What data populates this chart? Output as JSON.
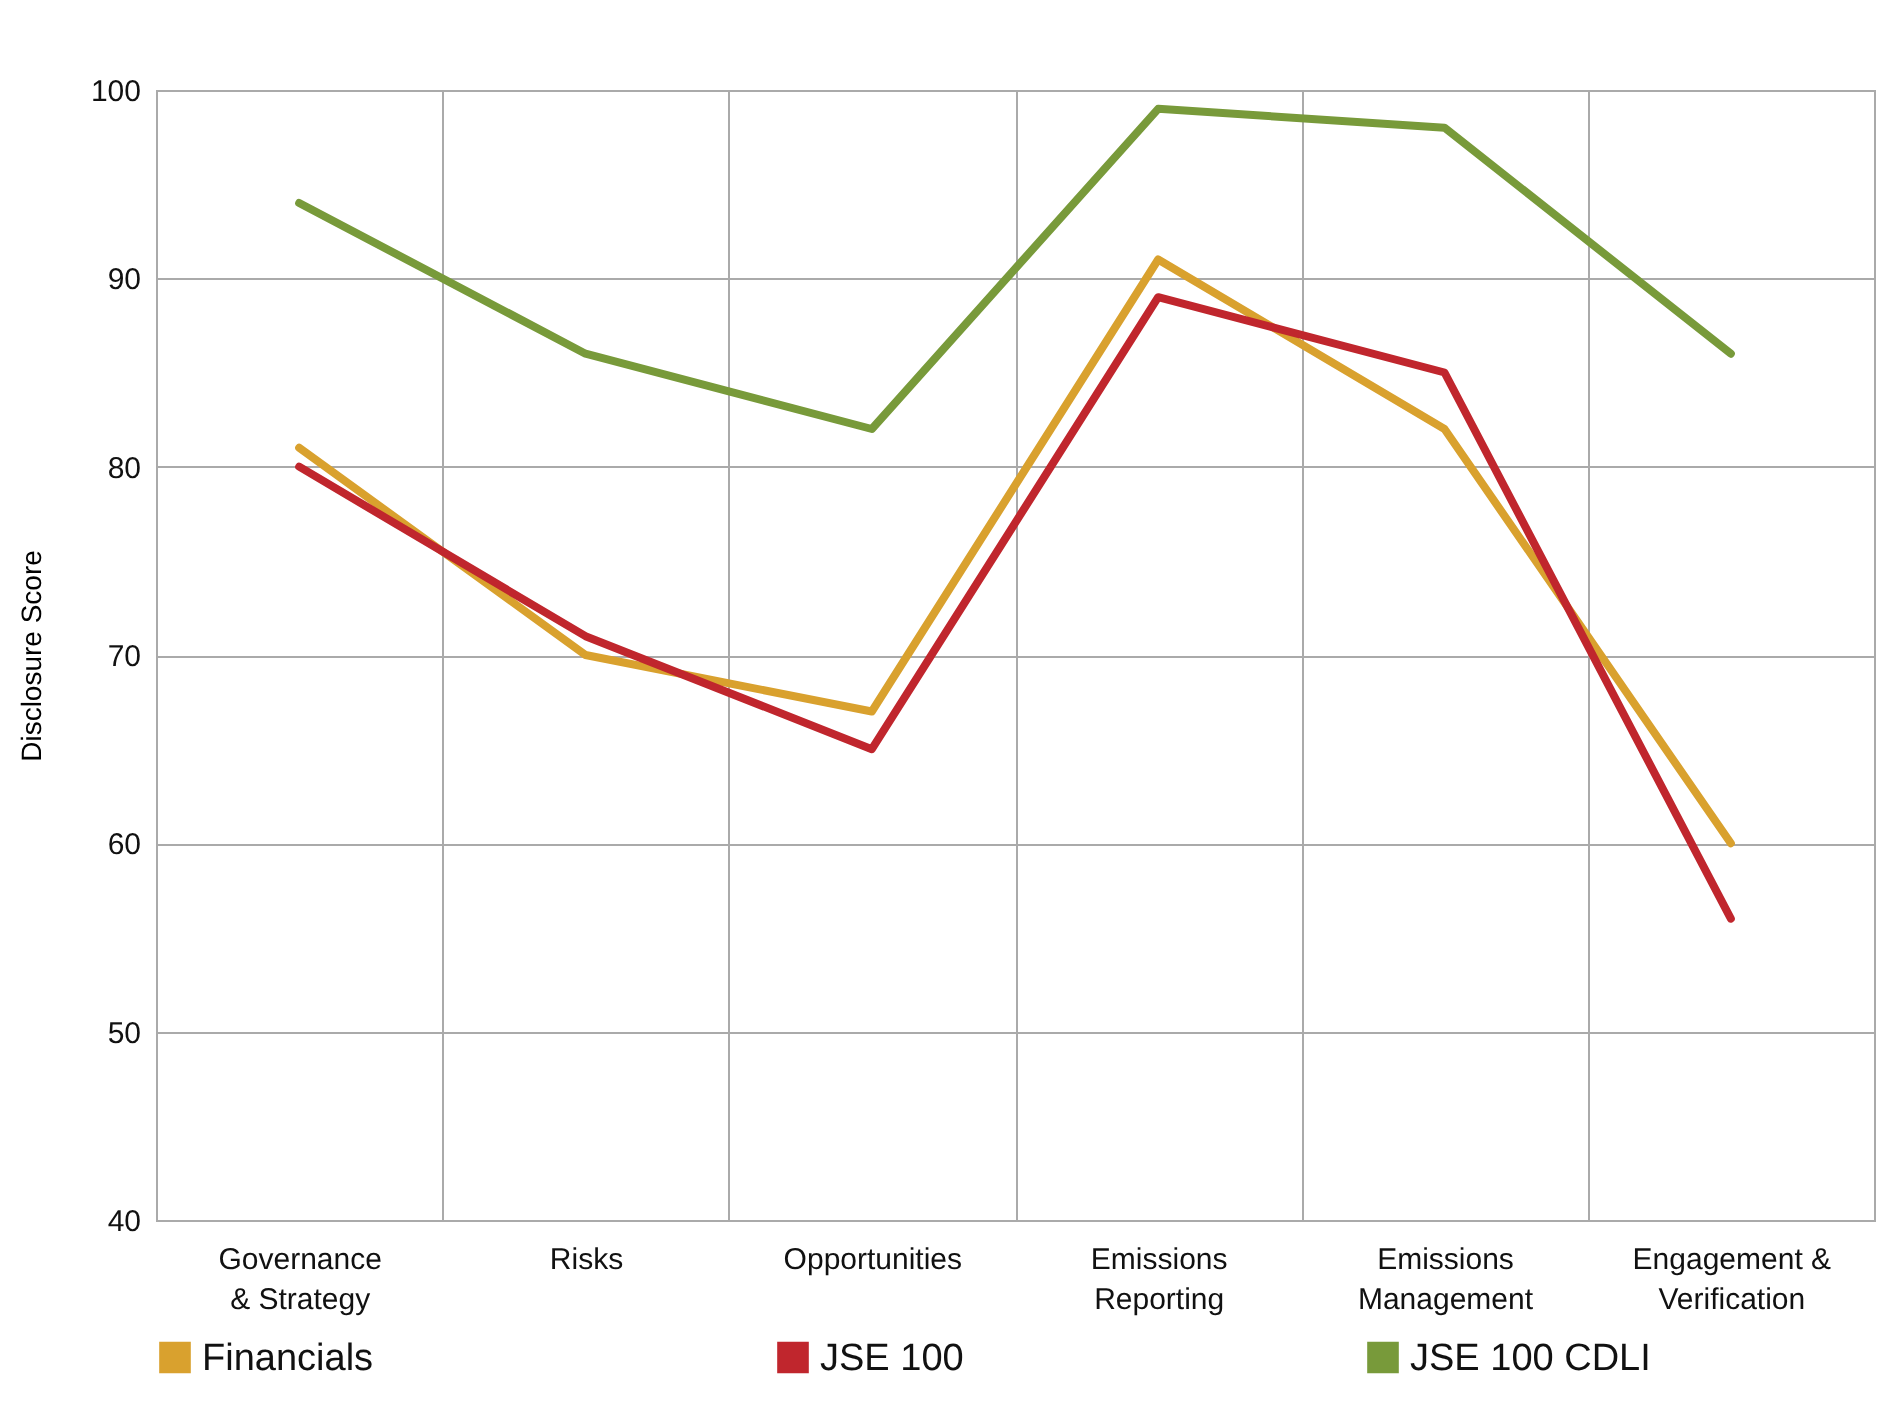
{
  "chart_data": {
    "type": "line",
    "ylabel": "Disclosure Score",
    "categories": [
      "Governance & Strategy",
      "Risks",
      "Opportunities",
      "Emissions Reporting",
      "Emissions Management",
      "Engagement & Verification"
    ],
    "series": [
      {
        "name": "Financials",
        "color": "#d9a12e",
        "values": [
          81,
          70,
          67,
          91,
          82,
          60
        ]
      },
      {
        "name": "JSE 100",
        "color": "#c0262d",
        "values": [
          80,
          71,
          65,
          89,
          85,
          56
        ]
      },
      {
        "name": "JSE 100 CDLI",
        "color": "#789a3a",
        "values": [
          94,
          86,
          82,
          99,
          98,
          86
        ]
      }
    ],
    "ylim": [
      40,
      100
    ],
    "yticks": [
      40,
      50,
      60,
      70,
      80,
      90,
      100
    ],
    "grid": true,
    "legend": "bottom",
    "marker": "none",
    "line_style": "solid"
  }
}
